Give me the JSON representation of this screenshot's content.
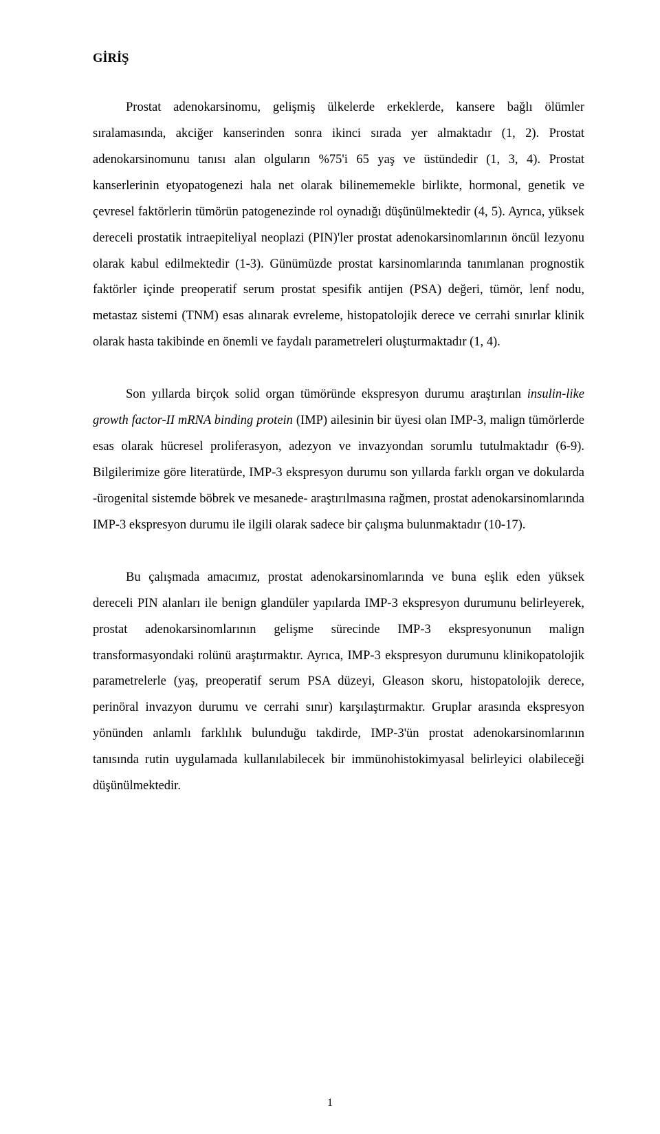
{
  "heading": "GİRİŞ",
  "para1": "Prostat adenokarsinomu, gelişmiş ülkelerde erkeklerde, kansere bağlı ölümler sıralamasında, akciğer kanserinden sonra ikinci sırada yer almaktadır (1, 2). Prostat adenokarsinomunu tanısı alan olguların %75'i 65 yaş ve üstündedir (1, 3, 4). Prostat kanserlerinin etyopatogenezi hala net olarak bilinememekle birlikte, hormonal, genetik ve çevresel faktörlerin tümörün patogenezinde rol oynadığı düşünülmektedir (4, 5). Ayrıca, yüksek dereceli prostatik intraepiteliyal neoplazi (PIN)'ler prostat adenokarsinomlarının öncül lezyonu olarak kabul edilmektedir (1-3). Günümüzde prostat karsinomlarında tanımlanan prognostik faktörler içinde preoperatif serum prostat spesifik antijen (PSA) değeri, tümör, lenf nodu, metastaz sistemi (TNM) esas alınarak evreleme, histopatolojik derece ve cerrahi sınırlar klinik olarak hasta takibinde en önemli ve faydalı parametreleri oluşturmaktadır (1, 4).",
  "para2_a": "Son yıllarda  birçok solid organ tümöründe ekspresyon durumu araştırılan ",
  "para2_italic": "insulin-like growth factor-II mRNA binding protein",
  "para2_b": " (IMP) ailesinin bir üyesi olan IMP-3, malign tümörlerde esas olarak hücresel proliferasyon, adezyon ve invazyondan sorumlu tutulmaktadır (6-9). Bilgilerimize göre literatürde, IMP-3 ekspresyon durumu son yıllarda farklı organ ve dokularda -ürogenital sistemde böbrek ve mesanede- araştırılmasına rağmen, prostat adenokarsinomlarında IMP-3 ekspresyon durumu ile ilgili olarak sadece bir çalışma bulunmaktadır (10-17).",
  "para3": "Bu çalışmada amacımız, prostat adenokarsinomlarında ve buna eşlik eden yüksek dereceli PIN alanları ile benign glandüler yapılarda IMP-3 ekspresyon durumunu belirleyerek, prostat adenokarsinomlarının gelişme sürecinde IMP-3 ekspresyonunun malign transformasyondaki rolünü araştırmaktır. Ayrıca, IMP-3 ekspresyon durumunu klinikopatolojik parametrelerle (yaş, preoperatif serum PSA düzeyi, Gleason skoru, histopatolojik derece, perinöral invazyon durumu ve cerrahi sınır) karşılaştırmaktır. Gruplar arasında ekspresyon yönünden anlamlı farklılık bulunduğu takdirde, IMP-3'ün prostat adenokarsinomlarının tanısında rutin uygulamada kullanılabilecek bir immünohistokimyasal belirleyici olabileceği düşünülmektedir.",
  "page_number": "1"
}
